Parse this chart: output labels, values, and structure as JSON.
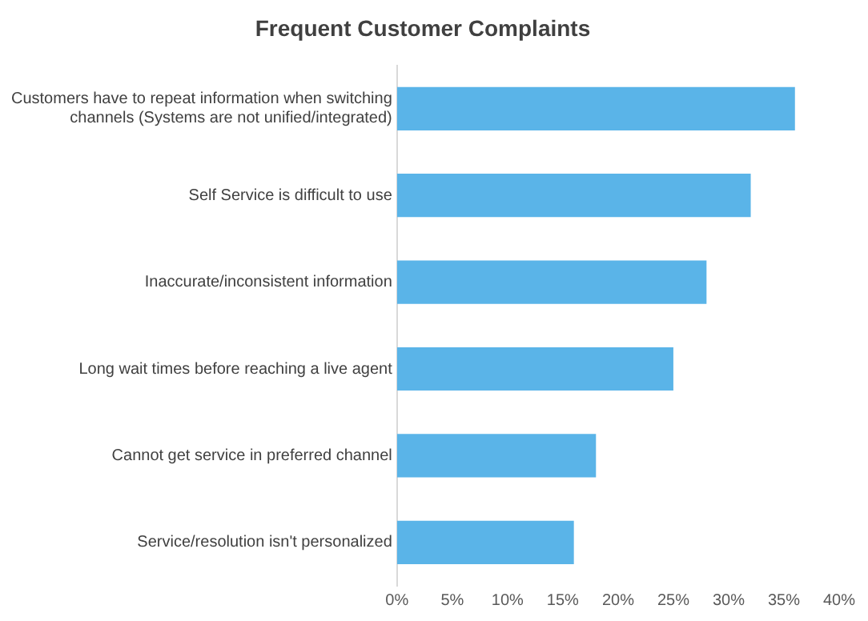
{
  "chart_data": {
    "type": "bar",
    "orientation": "horizontal",
    "title": "Frequent Customer Complaints",
    "categories": [
      "Customers have to repeat information when switching channels (Systems are not unified/integrated)",
      "Self Service is difficult to use",
      "Inaccurate/inconsistent information",
      "Long wait times before reaching a live agent",
      "Cannot get service in preferred channel",
      "Service/resolution isn't personalized"
    ],
    "values": [
      36,
      32,
      28,
      25,
      18,
      16
    ],
    "color": "#5ab4e8",
    "xlim": [
      0,
      40
    ],
    "xticks": [
      {
        "value": 0,
        "label": "0%"
      },
      {
        "value": 5,
        "label": "5%"
      },
      {
        "value": 10,
        "label": "10%"
      },
      {
        "value": 15,
        "label": "15%"
      },
      {
        "value": 20,
        "label": "20%"
      },
      {
        "value": 25,
        "label": "25%"
      },
      {
        "value": 30,
        "label": "30%"
      },
      {
        "value": 35,
        "label": "35%"
      },
      {
        "value": 40,
        "label": "40%"
      }
    ],
    "grid": false,
    "legend": false
  }
}
